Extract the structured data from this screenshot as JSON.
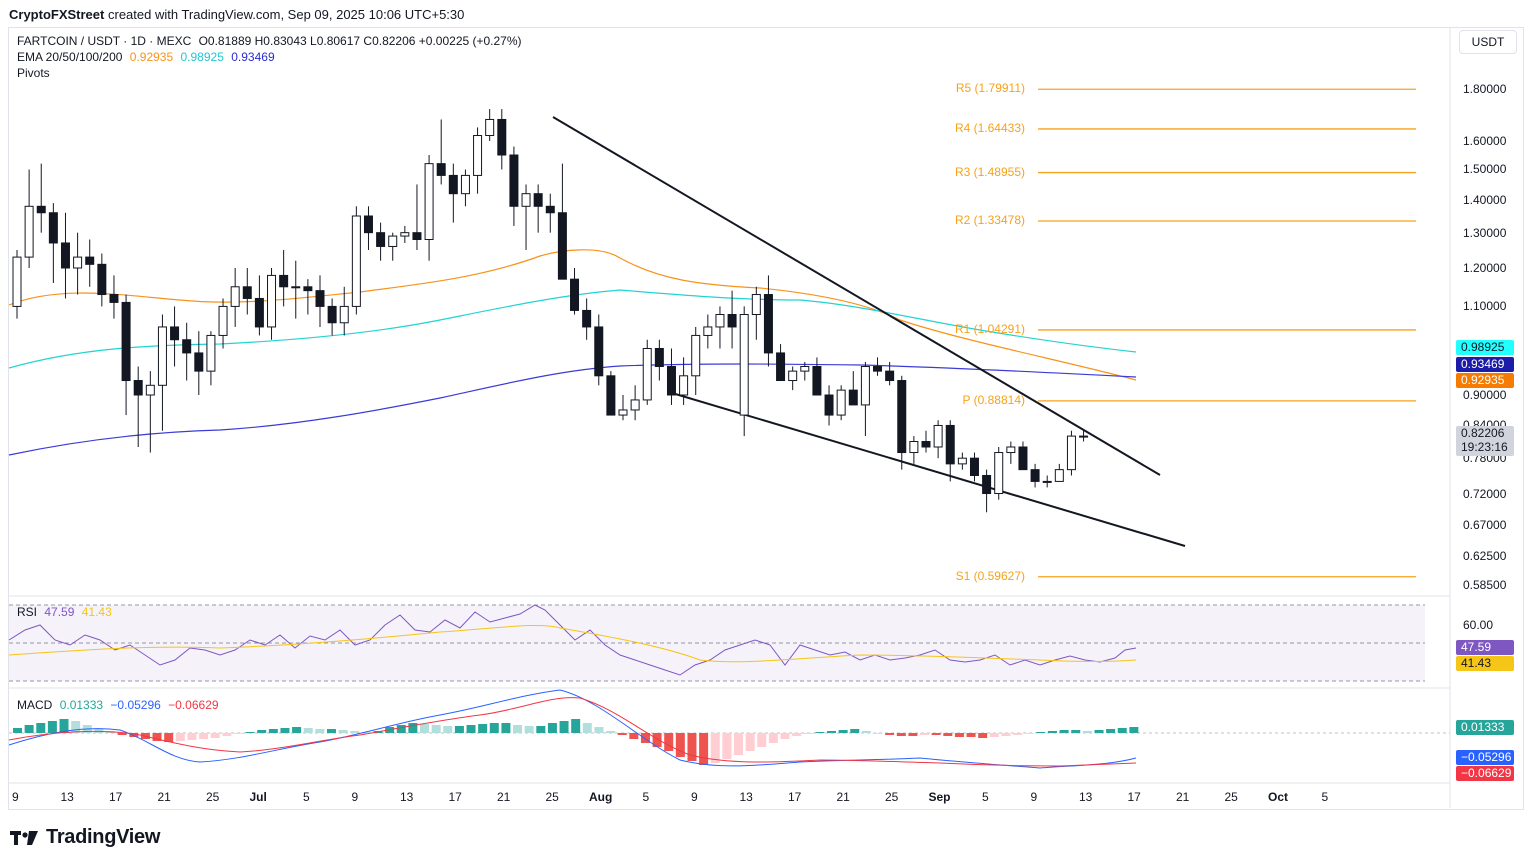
{
  "header": {
    "creator": "CryptoFXStreet",
    "text": "created with TradingView.com, Sep 09, 2025 10:06 UTC+5:30"
  },
  "symbol": {
    "title": "FARTCOIN / USDT · 1D · MEXC",
    "ohlc": "O0.81889 H0.83043 L0.80617 C0.82206 +0.00225 (+0.27%)"
  },
  "ema": {
    "label": "EMA 20/50/100/200",
    "v20": "0.92935",
    "v50": "0.98925",
    "v100": "0.93469"
  },
  "pivots_label": "Pivots",
  "currency_button": "USDT",
  "price_axis": [
    "1.80000",
    "1.60000",
    "1.50000",
    "1.40000",
    "1.30000",
    "1.20000",
    "1.10000",
    "0.90000",
    "0.84000",
    "0.78000",
    "0.72000",
    "0.67000",
    "0.62500",
    "0.58500"
  ],
  "price_tags": {
    "ema50": "0.98925",
    "ema200": "0.93469",
    "ema20": "0.92935",
    "last": "0.82206",
    "countdown": "19:23:16"
  },
  "pivots": [
    {
      "label": "R5 (1.79911)",
      "value": 1.79911
    },
    {
      "label": "R4 (1.64433)",
      "value": 1.64433
    },
    {
      "label": "R3 (1.48955)",
      "value": 1.48955
    },
    {
      "label": "R2 (1.33478)",
      "value": 1.33478
    },
    {
      "label": "R1 (1.04291)",
      "value": 1.04291
    },
    {
      "label": "P (0.88814)",
      "value": 0.88814
    },
    {
      "label": "S1 (0.59627)",
      "value": 0.59627
    }
  ],
  "rsi": {
    "label": "RSI",
    "value": "47.59",
    "ma": "41.43",
    "axis": "60.00"
  },
  "macd": {
    "label": "MACD",
    "hist": "0.01333",
    "macd": "−0.05296",
    "signal": "−0.06629"
  },
  "macd_tags": {
    "hist": "0.01333",
    "macd": "−0.05296",
    "signal": "−0.06629"
  },
  "time_axis": [
    "9",
    "13",
    "17",
    "21",
    "25",
    "Jul",
    "5",
    "9",
    "13",
    "17",
    "21",
    "25",
    "Aug",
    "5",
    "9",
    "13",
    "17",
    "21",
    "25",
    "Sep",
    "5",
    "9",
    "13",
    "17",
    "21",
    "25",
    "Oct",
    "5"
  ],
  "brand": "TradingView",
  "colors": {
    "ema20": "#f7931a",
    "ema50": "#22d3d3",
    "ema200": "#3b3bd6",
    "pivot": "#f7a21b",
    "rsi": "#7e57c2",
    "rsi_ma": "#f5c518",
    "macd": "#2962ff",
    "signal": "#f23645",
    "hist_up": "#26a69a",
    "hist_down": "#ef5350"
  }
}
